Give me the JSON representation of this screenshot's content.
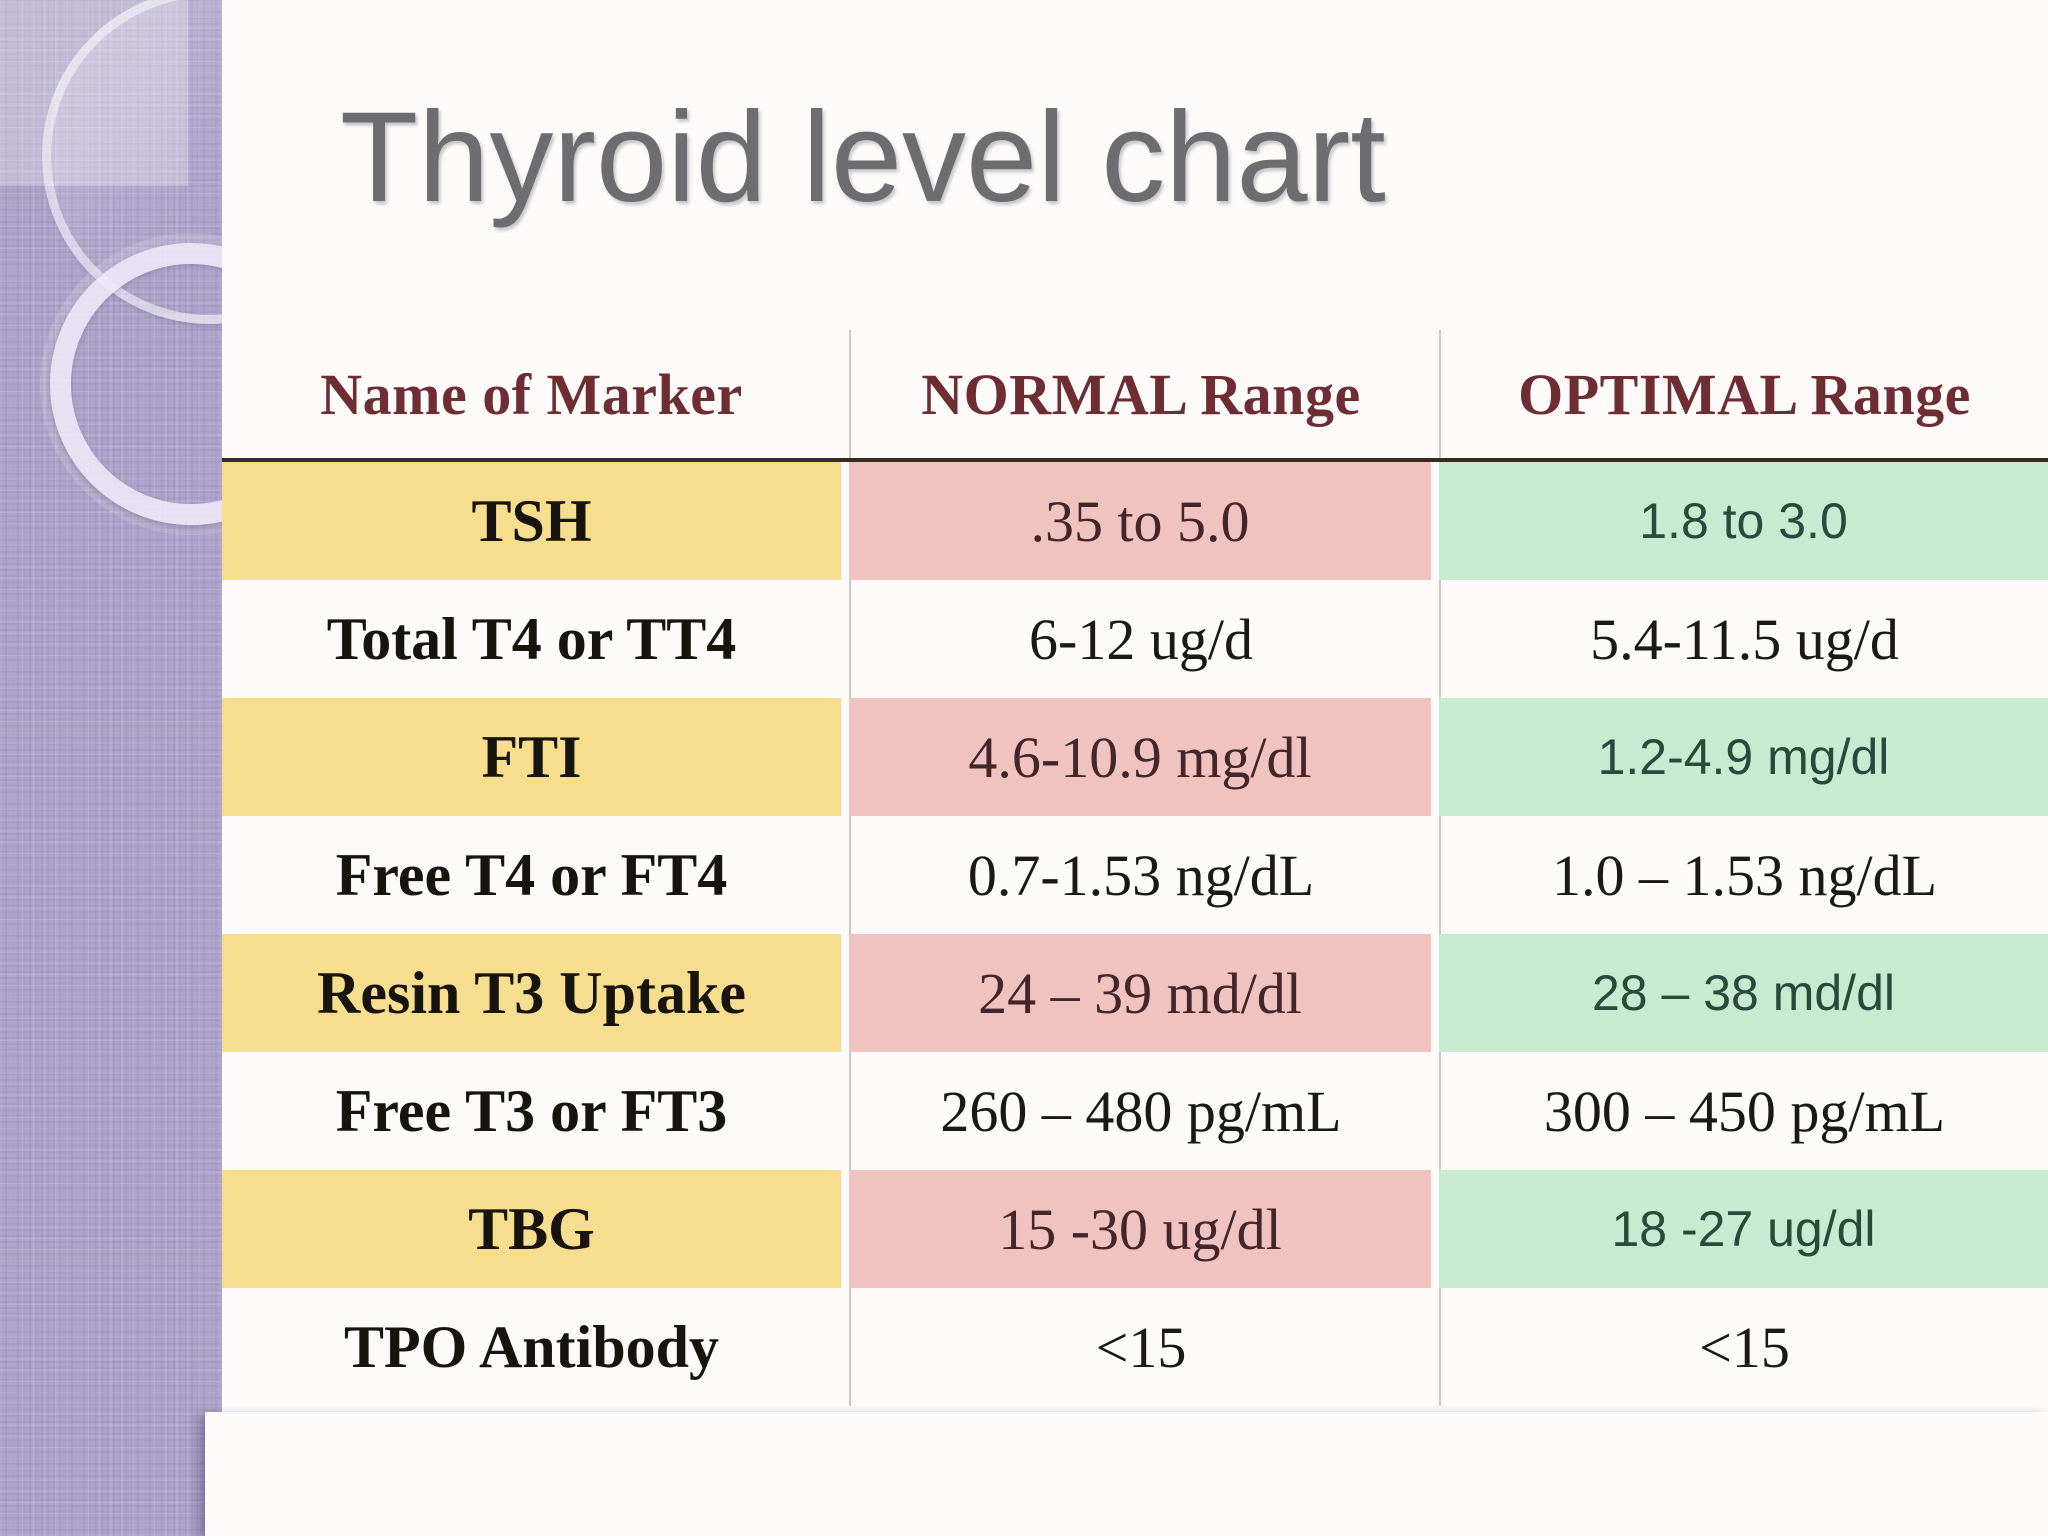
{
  "slide": {
    "title": "Thyroid level chart"
  },
  "table": {
    "columns": [
      "Name of Marker",
      "NORMAL Range",
      "OPTIMAL Range"
    ],
    "rows": [
      {
        "marker": "TSH",
        "normal": ".35 to 5.0",
        "optimal": "1.8 to 3.0",
        "highlighted": true
      },
      {
        "marker": "Total T4 or TT4",
        "normal": "6-12 ug/d",
        "optimal": "5.4-11.5 ug/d",
        "highlighted": false
      },
      {
        "marker": "FTI",
        "normal": "4.6-10.9 mg/dl",
        "optimal": "1.2-4.9 mg/dl",
        "highlighted": true
      },
      {
        "marker": "Free T4 or FT4",
        "normal": "0.7-1.53 ng/dL",
        "optimal": "1.0 – 1.53 ng/dL",
        "highlighted": false
      },
      {
        "marker": "Resin T3 Uptake",
        "normal": "24 – 39 md/dl",
        "optimal": "28 – 38 md/dl",
        "highlighted": true
      },
      {
        "marker": "Free T3 or FT3",
        "normal": "260 – 480 pg/mL",
        "optimal": "300 – 450 pg/mL",
        "highlighted": false
      },
      {
        "marker": "TBG",
        "normal": "15 -30 ug/dl",
        "optimal": "18 -27 ug/dl",
        "highlighted": true
      },
      {
        "marker": "TPO Antibody",
        "normal": "<15",
        "optimal": "<15",
        "highlighted": false
      }
    ]
  },
  "chart_data": {
    "type": "table",
    "title": "Thyroid level chart",
    "columns": [
      "Name of Marker",
      "NORMAL Range",
      "OPTIMAL Range"
    ],
    "rows": [
      [
        "TSH",
        ".35 to 5.0",
        "1.8 to 3.0"
      ],
      [
        "Total T4 or TT4",
        "6-12 ug/d",
        "5.4-11.5 ug/d"
      ],
      [
        "FTI",
        "4.6-10.9 mg/dl",
        "1.2-4.9 mg/dl"
      ],
      [
        "Free T4 or FT4",
        "0.7-1.53 ng/dL",
        "1.0 – 1.53 ng/dL"
      ],
      [
        "Resin T3 Uptake",
        "24 – 39 md/dl",
        "28 – 38 md/dl"
      ],
      [
        "Free T3 or FT3",
        "260 – 480 pg/mL",
        "300 – 450 pg/mL"
      ],
      [
        "TBG",
        "15 -30 ug/dl",
        "18 -27 ug/dl"
      ],
      [
        "TPO Antibody",
        "<15",
        "<15"
      ]
    ]
  },
  "colors": {
    "sidebar": "#aea4c9",
    "yellow": "#f7dd8e",
    "pink": "#f0c3c1",
    "green": "#c7ead0",
    "header_text": "#6e2c33",
    "optimal_text": "#29493a",
    "title_text": "#6c6c71",
    "rule": "#362b22"
  }
}
